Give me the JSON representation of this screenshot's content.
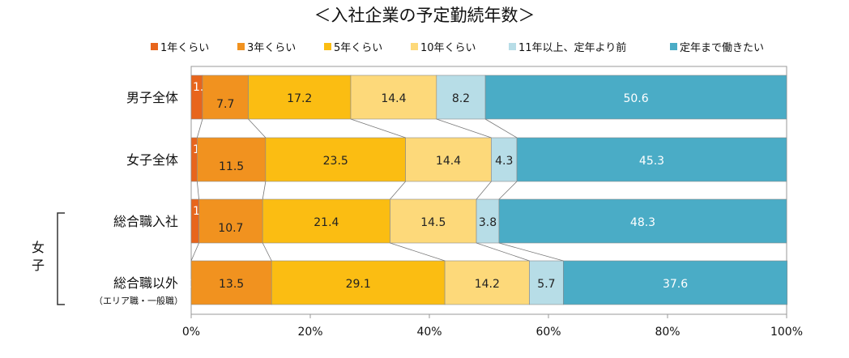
{
  "chart_data": {
    "type": "bar",
    "orientation": "horizontal",
    "stacked": "percent",
    "title": "＜入社企業の予定勤続年数＞",
    "categories": [
      "男子全体",
      "女子全体",
      "総合職入社",
      "総合職以外"
    ],
    "category_sublabels": [
      "",
      "",
      "",
      "（エリア職・一般職）"
    ],
    "group_label": "女子",
    "series": [
      {
        "name": "1年くらい",
        "color": "#e8651c",
        "values": [
          1.9,
          1.0,
          1.3,
          0.0
        ]
      },
      {
        "name": "3年くらい",
        "color": "#f1921f",
        "values": [
          7.7,
          11.5,
          10.7,
          13.5
        ]
      },
      {
        "name": "5年くらい",
        "color": "#fbbd12",
        "values": [
          17.2,
          23.5,
          21.4,
          29.1
        ]
      },
      {
        "name": "10年くらい",
        "color": "#fdd97a",
        "values": [
          14.4,
          14.4,
          14.5,
          14.2
        ]
      },
      {
        "name": "11年以上、定年より前",
        "color": "#b7dde7",
        "values": [
          8.2,
          4.3,
          3.8,
          5.7
        ]
      },
      {
        "name": "定年まで働きたい",
        "color": "#4aacc6",
        "values": [
          50.6,
          45.3,
          48.3,
          37.6
        ]
      }
    ],
    "xlim": [
      0,
      100
    ],
    "x_ticks": [
      "0%",
      "20%",
      "40%",
      "60%",
      "80%",
      "100%"
    ],
    "legend_position": "top",
    "grid": false,
    "series_lines": true
  }
}
